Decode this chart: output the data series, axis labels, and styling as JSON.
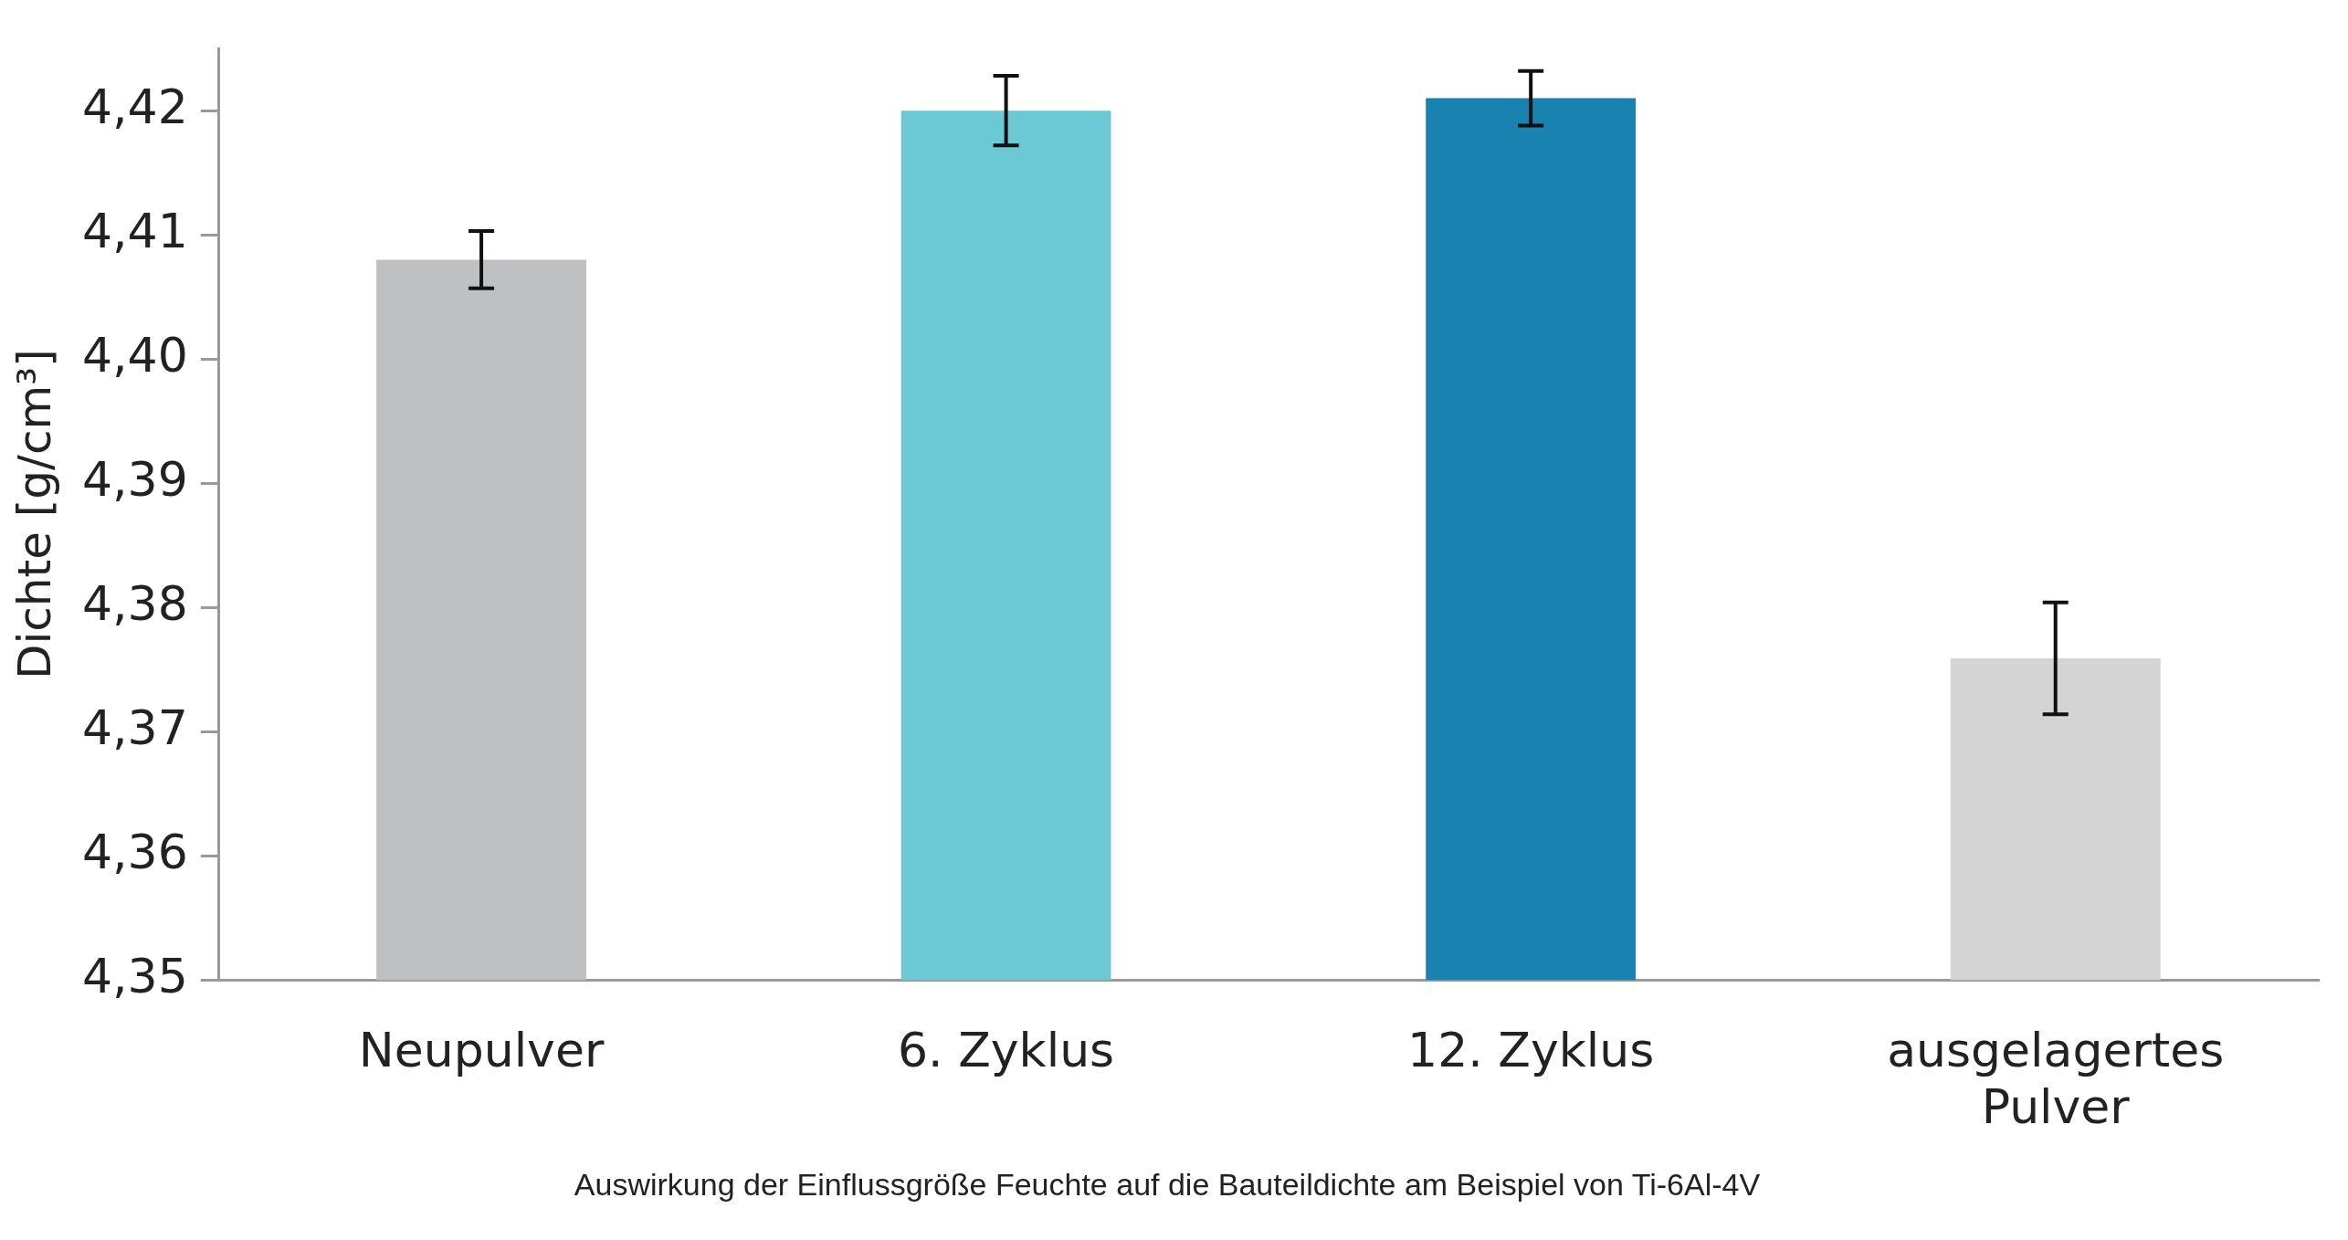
{
  "chart_data": {
    "type": "bar",
    "ylabel": "Dichte [g/cm³]",
    "categories": [
      "Neupulver",
      "6. Zyklus",
      "12. Zyklus",
      "ausgelagertes Pulver"
    ],
    "values": [
      4.408,
      4.42,
      4.421,
      4.3759
    ],
    "colors": [
      "#bfc0c2",
      "#6bc9d6",
      "#1a82b0",
      "#d4d4d4"
    ],
    "errors": [
      0.0023,
      0.0028,
      0.0022,
      0.0045
    ],
    "ylim": [
      4.35,
      4.425
    ],
    "yticks": [
      {
        "value": 4.35,
        "label": "4,35"
      },
      {
        "value": 4.36,
        "label": "4,36"
      },
      {
        "value": 4.37,
        "label": "4,37"
      },
      {
        "value": 4.38,
        "label": "4,38"
      },
      {
        "value": 4.39,
        "label": "4,39"
      },
      {
        "value": 4.4,
        "label": "4,40"
      },
      {
        "value": 4.41,
        "label": "4,41"
      },
      {
        "value": 4.42,
        "label": "4,42"
      }
    ],
    "grid": false,
    "legend": false,
    "annotations": [
      "Auswirkung der Einflussgröße Feuchte auf die Bauteildichte am Beispiel von Ti-6Al-4V"
    ]
  }
}
